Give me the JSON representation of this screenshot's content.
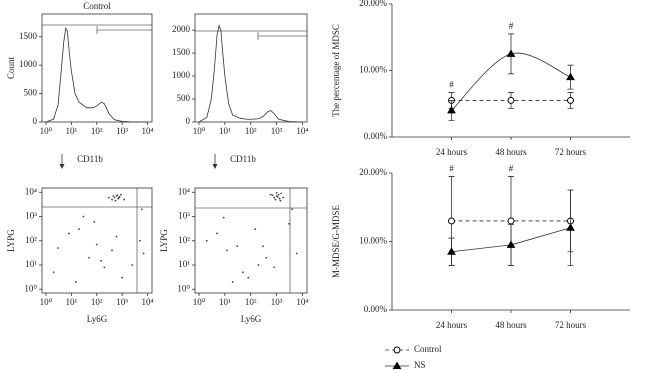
{
  "chart_data": [
    {
      "type": "line",
      "title": "Control",
      "ylabel": "Count",
      "annotation": "CD11b",
      "frame": "box",
      "xscale": "log",
      "color": "#000000",
      "x": [
        1,
        2,
        3,
        4,
        5,
        6,
        7,
        8,
        10,
        14,
        20,
        40,
        70,
        100,
        150,
        200,
        300,
        500,
        1000,
        3000,
        10000
      ],
      "values": [
        0,
        50,
        300,
        900,
        1400,
        1650,
        1600,
        1300,
        900,
        500,
        350,
        250,
        250,
        280,
        350,
        320,
        150,
        40,
        10,
        0,
        0
      ],
      "xlim": [
        0.7,
        15000
      ],
      "ylim": [
        0,
        1900
      ],
      "xticks": [
        {
          "value": 1,
          "label": "10⁰"
        },
        {
          "value": 10,
          "label": "10¹"
        },
        {
          "value": 100,
          "label": "10²"
        },
        {
          "value": 1000,
          "label": "10³"
        },
        {
          "value": 10000,
          "label": "10⁴"
        }
      ],
      "yticks": [
        0,
        500,
        1000,
        1500
      ]
    },
    {
      "type": "line",
      "annotation": "CD11b",
      "frame": "box",
      "xscale": "log",
      "color": "#000000",
      "x": [
        1,
        2,
        3,
        4,
        5,
        6,
        7,
        8,
        10,
        14,
        20,
        40,
        70,
        100,
        200,
        300,
        450,
        600,
        800,
        1200,
        3000,
        10000
      ],
      "values": [
        0,
        100,
        500,
        1200,
        1900,
        2100,
        2000,
        1600,
        1000,
        400,
        150,
        80,
        60,
        60,
        70,
        120,
        220,
        250,
        180,
        60,
        10,
        0
      ],
      "xlim": [
        0.7,
        15000
      ],
      "ylim": [
        0,
        2350
      ],
      "xticks": [
        {
          "value": 1,
          "label": "10⁰"
        },
        {
          "value": 10,
          "label": "10¹"
        },
        {
          "value": 100,
          "label": "10²"
        },
        {
          "value": 1000,
          "label": "10³"
        },
        {
          "value": 10000,
          "label": "10⁴"
        }
      ],
      "yticks": [
        0,
        500,
        1000,
        1500,
        2000
      ]
    },
    {
      "type": "scatter",
      "xlabel": "Ly6G",
      "ylabel": "LYPG",
      "frame": "box",
      "xscale": "log",
      "yscale": "log",
      "color": "#444444",
      "x": [
        500,
        600,
        700,
        800,
        400,
        900,
        550,
        650,
        750,
        450,
        300,
        1200,
        20,
        50,
        3,
        200,
        1000,
        8,
        30,
        400,
        2,
        100,
        5000,
        7000,
        6000,
        15,
        80,
        150,
        600,
        2500
      ],
      "values": [
        6000,
        7000,
        5500,
        6500,
        5000,
        8000,
        4500,
        7500,
        6000,
        7000,
        6000,
        5000,
        300,
        20,
        50,
        8,
        3,
        200,
        1000,
        40,
        5,
        70,
        100,
        30,
        2000,
        2,
        600,
        15,
        150,
        10
      ],
      "xlim": [
        0.7,
        15000
      ],
      "ylim": [
        0.7,
        15000
      ],
      "xticks": [
        {
          "value": 1,
          "label": "10⁰"
        },
        {
          "value": 10,
          "label": "10¹"
        },
        {
          "value": 100,
          "label": "10²"
        },
        {
          "value": 1000,
          "label": "10³"
        },
        {
          "value": 10000,
          "label": "10⁴"
        }
      ],
      "yticks": [
        {
          "value": 1,
          "label": "10⁰"
        },
        {
          "value": 10,
          "label": "10¹"
        },
        {
          "value": 100,
          "label": "10²"
        },
        {
          "value": 1000,
          "label": "10³"
        },
        {
          "value": 10000,
          "label": "10⁴"
        }
      ]
    },
    {
      "type": "scatter",
      "xlabel": "Ly6G",
      "ylabel": "LYPG",
      "frame": "box",
      "xscale": "log",
      "yscale": "log",
      "color": "#444444",
      "x": [
        1000,
        1200,
        800,
        1500,
        900,
        1100,
        700,
        1300,
        1000,
        1800,
        600,
        1400,
        30,
        5,
        200,
        80,
        3000,
        12,
        400,
        2,
        50,
        6000,
        150,
        20,
        800,
        4000,
        9,
        300
      ],
      "values": [
        7000,
        8000,
        6000,
        9000,
        5000,
        6500,
        7500,
        5500,
        9500,
        6000,
        8000,
        4500,
        60,
        200,
        10,
        3,
        500,
        40,
        20,
        100,
        5,
        30,
        300,
        2,
        8,
        2000,
        900,
        60
      ],
      "xlim": [
        0.7,
        15000
      ],
      "ylim": [
        0.7,
        15000
      ],
      "xticks": [
        {
          "value": 1,
          "label": "10⁰"
        },
        {
          "value": 10,
          "label": "10¹"
        },
        {
          "value": 100,
          "label": "10²"
        },
        {
          "value": 1000,
          "label": "10³"
        },
        {
          "value": 10000,
          "label": "10⁴"
        }
      ],
      "yticks": [
        {
          "value": 1,
          "label": "10⁰"
        },
        {
          "value": 10,
          "label": "10¹"
        },
        {
          "value": 100,
          "label": "10²"
        },
        {
          "value": 1000,
          "label": "10³"
        },
        {
          "value": 10000,
          "label": "10⁴"
        }
      ]
    },
    {
      "type": "line",
      "ylabel": "The percentage of MDSC",
      "frame": "axes",
      "categories": [
        "24 hours",
        "48 hours",
        "72 hours"
      ],
      "series": [
        {
          "name": "Control",
          "color": "#000000",
          "dashed": true,
          "marker": "circle",
          "values": [
            5.5,
            5.5,
            5.5
          ],
          "errors": [
            1.2,
            1.2,
            1.2
          ]
        },
        {
          "name": "NS",
          "color": "#000000",
          "marker": "triangle",
          "smooth": true,
          "values": [
            4,
            12.5,
            9
          ],
          "errors": [
            1.5,
            3,
            1.8
          ]
        }
      ],
      "annotations": [
        {
          "text": "#",
          "x": "24 hours"
        },
        {
          "text": "#",
          "x": "48 hours"
        }
      ],
      "ylim": [
        0,
        20
      ],
      "yticks": [
        {
          "value": 0,
          "label": "0.00%"
        },
        {
          "value": 10,
          "label": "10.00%"
        },
        {
          "value": 20,
          "label": "20.00%"
        }
      ]
    },
    {
      "type": "line",
      "ylabel": "M-MDSE/G-MDSE",
      "frame": "axes",
      "categories": [
        "24 hours",
        "48 hours",
        "72 hours"
      ],
      "series": [
        {
          "color": "#000000",
          "dashed": true,
          "marker": "circle",
          "values": [
            13,
            13,
            13
          ],
          "errors": [
            6.5,
            6.5,
            4.5
          ]
        },
        {
          "color": "#000000",
          "marker": "triangle",
          "values": [
            8.5,
            9.5,
            12
          ],
          "errors": [
            2,
            3,
            5.5
          ]
        }
      ],
      "annotations": [
        {
          "text": "#",
          "x": "24 hours"
        },
        {
          "text": "#",
          "x": "48 hours"
        }
      ],
      "ylim": [
        0,
        20
      ],
      "yticks": [
        {
          "value": 0,
          "label": "0.00%"
        },
        {
          "value": 10,
          "label": "10.00%"
        },
        {
          "value": 20,
          "label": "20.00%"
        }
      ]
    }
  ]
}
